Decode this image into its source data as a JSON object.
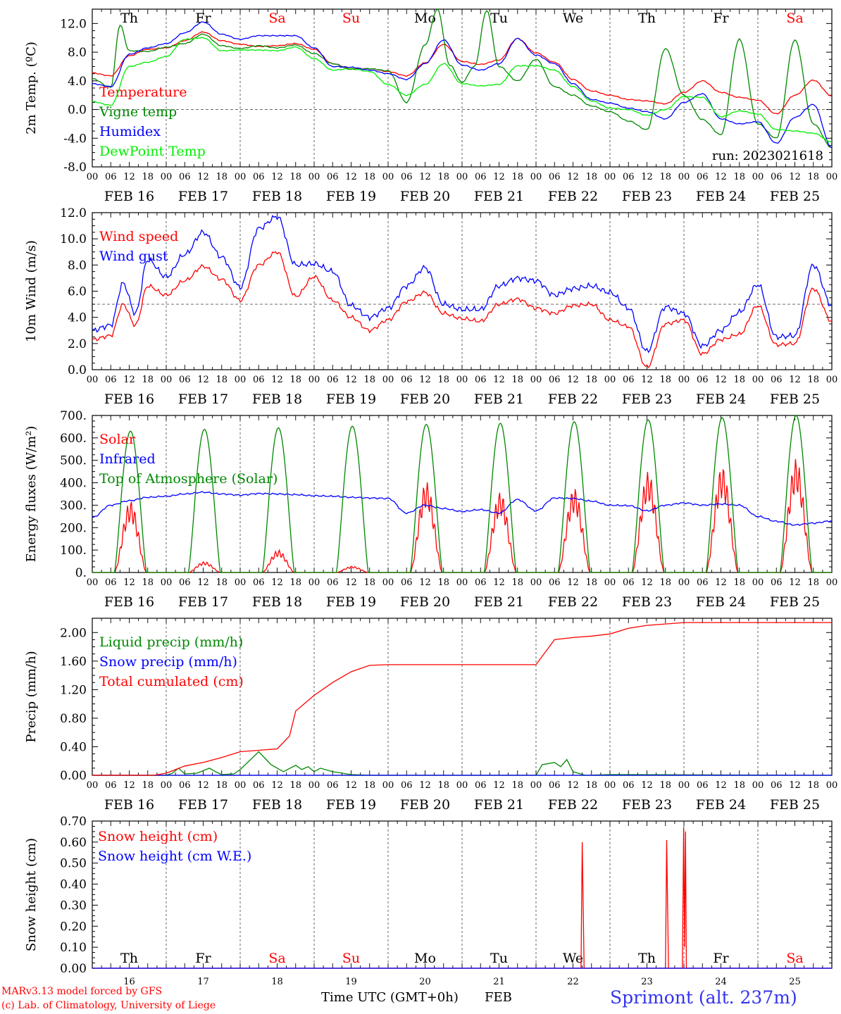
{
  "days": [
    "16",
    "17",
    "18",
    "19",
    "20",
    "21",
    "22",
    "23",
    "24",
    "25"
  ],
  "day_names": [
    "Th",
    "Fr",
    "Sa",
    "Su",
    "Mo",
    "Tu",
    "We",
    "Th",
    "Fr",
    "Sa"
  ],
  "weekend_flags": [
    false,
    false,
    true,
    true,
    false,
    false,
    false,
    false,
    false,
    true
  ],
  "date_labels": [
    "FEB 16",
    "FEB 17",
    "FEB 18",
    "FEB 19",
    "FEB 20",
    "FEB 21",
    "FEB 22",
    "FEB 23",
    "FEB 24",
    "FEB 25"
  ],
  "hour_labels": [
    "00",
    "06",
    "12",
    "18"
  ],
  "final_hour_label": "00",
  "run_label": "run: 2023021618",
  "x_axis_label": "Time UTC (GMT+0h)",
  "x_month_label": "FEB",
  "station": "Sprimont (alt. 237m)",
  "credit_1": "MARv3.13 model forced by GFS",
  "credit_2": "(c) Lab. of Climatology, University of Liege",
  "colors": {
    "red": "#ff0000",
    "green": "#008800",
    "blue": "#0000ff",
    "light_green": "#00ee00",
    "grid": "#555555"
  },
  "chart_data": [
    {
      "type": "line",
      "ylabel": "2m Temp. (ºC)",
      "ylim": [
        -8,
        14
      ],
      "yticks": [
        "-8.0",
        "-4.0",
        "0.0",
        "4.0",
        "8.0",
        "12.0"
      ],
      "ytick_values": [
        -8,
        -4,
        0,
        4,
        8,
        12
      ],
      "ref_line": 0,
      "x_unit": "hours since FEB 16 00 UTC",
      "series": [
        {
          "name": "Temperature",
          "color": "red",
          "x": [
            0,
            6,
            12,
            18,
            24,
            30,
            36,
            42,
            48,
            54,
            60,
            66,
            72,
            78,
            84,
            90,
            96,
            102,
            108,
            114,
            120,
            126,
            132,
            138,
            144,
            150,
            156,
            162,
            168,
            174,
            180,
            186,
            192,
            198,
            204,
            210,
            216,
            222,
            228,
            234,
            240
          ],
          "y": [
            5.1,
            4.7,
            7.5,
            8.4,
            8.6,
            9.6,
            10.8,
            9.6,
            9.1,
            8.8,
            8.9,
            9.2,
            8.4,
            6.4,
            5.7,
            5.7,
            5.3,
            4.7,
            6.5,
            9.1,
            6.7,
            6.3,
            6.9,
            9.9,
            7.9,
            6.6,
            4.2,
            2.6,
            2.0,
            1.4,
            1.2,
            0.8,
            2.4,
            4.0,
            2.4,
            1.7,
            1.3,
            -0.6,
            2.0,
            4.1,
            1.9
          ]
        },
        {
          "name": "Vigne temp",
          "color": "green",
          "x": [
            0,
            6,
            9,
            12,
            18,
            24,
            30,
            36,
            42,
            48,
            54,
            60,
            66,
            72,
            78,
            84,
            90,
            96,
            102,
            108,
            112,
            116,
            120,
            124,
            128,
            132,
            138,
            144,
            150,
            156,
            162,
            168,
            174,
            180,
            186,
            192,
            198,
            204,
            210,
            216,
            222,
            228,
            234,
            240
          ],
          "y": [
            4.3,
            3.1,
            11.8,
            8.2,
            8.1,
            8.7,
            9.2,
            10.5,
            8.9,
            8.5,
            8.9,
            8.6,
            9.0,
            7.8,
            6.4,
            5.6,
            5.7,
            5.4,
            1.0,
            9.0,
            14.0,
            6.2,
            3.8,
            6.0,
            13.8,
            6.0,
            4.0,
            7.0,
            3.2,
            2.0,
            0.5,
            -0.3,
            -1.6,
            -2.8,
            8.5,
            2.0,
            -1.4,
            -3.5,
            9.8,
            -2.0,
            -4.0,
            9.7,
            -2.0,
            -5.3
          ]
        },
        {
          "name": "Humidex",
          "color": "blue",
          "x": [
            0,
            6,
            12,
            18,
            24,
            30,
            36,
            42,
            48,
            54,
            60,
            66,
            72,
            78,
            84,
            90,
            96,
            102,
            108,
            114,
            120,
            126,
            132,
            138,
            144,
            150,
            156,
            162,
            168,
            174,
            180,
            186,
            192,
            198,
            204,
            210,
            216,
            222,
            228,
            234,
            240
          ],
          "y": [
            3.6,
            3.2,
            7.7,
            8.6,
            9.2,
            10.7,
            12.2,
            10.5,
            9.8,
            10.3,
            10.3,
            10.3,
            8.6,
            6.0,
            5.9,
            5.5,
            5.0,
            4.2,
            6.4,
            9.7,
            6.2,
            5.5,
            6.4,
            9.9,
            7.6,
            6.4,
            3.6,
            1.4,
            0.9,
            0.2,
            -0.3,
            -1.3,
            1.0,
            2.2,
            -1.3,
            -2.0,
            -1.7,
            -4.7,
            -1.1,
            0.7,
            -5.3
          ]
        },
        {
          "name": "DewPoint Temp",
          "color": "light_green",
          "x": [
            0,
            6,
            12,
            18,
            24,
            30,
            36,
            42,
            48,
            54,
            60,
            66,
            72,
            78,
            84,
            90,
            96,
            102,
            108,
            114,
            120,
            126,
            132,
            138,
            144,
            150,
            156,
            162,
            168,
            174,
            180,
            186,
            192,
            198,
            204,
            210,
            216,
            222,
            228,
            234,
            240
          ],
          "y": [
            1.1,
            0.6,
            6.0,
            6.6,
            7.4,
            9.8,
            10.0,
            8.2,
            8.3,
            8.3,
            8.2,
            8.7,
            7.1,
            5.5,
            5.7,
            5.3,
            3.5,
            2.0,
            3.5,
            6.4,
            3.6,
            3.3,
            3.5,
            6.1,
            6.1,
            5.5,
            3.2,
            1.2,
            0.2,
            0.0,
            -0.8,
            0.0,
            1.8,
            1.7,
            -1.0,
            -0.2,
            -0.6,
            -2.8,
            -3.0,
            -3.3,
            -4.5
          ]
        }
      ],
      "legend": [
        "Temperature",
        "Vigne temp",
        "Humidex",
        "DewPoint Temp"
      ]
    },
    {
      "type": "line",
      "ylabel": "10m Wind (m/s)",
      "ylim": [
        0,
        12
      ],
      "yticks": [
        "0.0",
        "2.0",
        "4.0",
        "6.0",
        "8.0",
        "10.0",
        "12.0"
      ],
      "ytick_values": [
        0,
        2,
        4,
        6,
        8,
        10,
        12
      ],
      "ref_line": 5,
      "x_unit": "hours since FEB 16 00 UTC",
      "series": [
        {
          "name": "Wind speed",
          "color": "red",
          "x": [
            0,
            6,
            10,
            14,
            18,
            24,
            30,
            36,
            42,
            48,
            54,
            60,
            66,
            72,
            78,
            84,
            90,
            96,
            102,
            108,
            114,
            120,
            126,
            132,
            138,
            144,
            150,
            156,
            162,
            168,
            174,
            180,
            186,
            192,
            198,
            204,
            210,
            216,
            222,
            228,
            234,
            240
          ],
          "y": [
            2.3,
            2.6,
            5.0,
            3.4,
            6.4,
            5.7,
            6.8,
            7.9,
            6.9,
            5.3,
            8.0,
            9.0,
            5.6,
            7.1,
            5.3,
            4.0,
            3.0,
            3.8,
            5.2,
            5.9,
            4.3,
            3.9,
            3.7,
            5.0,
            5.4,
            4.7,
            4.3,
            4.9,
            5.0,
            3.8,
            3.3,
            0.2,
            3.5,
            3.8,
            1.2,
            2.3,
            2.7,
            4.9,
            1.9,
            2.0,
            6.2,
            3.7
          ]
        },
        {
          "name": "Wind gust",
          "color": "blue",
          "x": [
            0,
            6,
            10,
            14,
            18,
            24,
            30,
            36,
            42,
            48,
            54,
            60,
            66,
            72,
            78,
            84,
            90,
            96,
            102,
            108,
            114,
            120,
            126,
            132,
            138,
            144,
            150,
            156,
            162,
            168,
            174,
            180,
            186,
            192,
            198,
            204,
            210,
            216,
            222,
            228,
            234,
            240
          ],
          "y": [
            3.0,
            3.4,
            6.6,
            4.3,
            8.4,
            7.1,
            8.8,
            10.5,
            8.6,
            6.3,
            10.8,
            11.7,
            8.0,
            8.1,
            7.5,
            4.9,
            4.0,
            4.7,
            6.4,
            7.8,
            5.0,
            4.6,
            4.6,
            6.4,
            7.0,
            6.8,
            5.7,
            6.2,
            6.4,
            5.9,
            4.7,
            1.4,
            4.8,
            4.3,
            1.8,
            3.0,
            4.4,
            6.5,
            2.5,
            2.6,
            8.0,
            4.9
          ]
        }
      ],
      "legend": [
        "Wind speed",
        "Wind gust"
      ]
    },
    {
      "type": "line",
      "ylabel": "Energy fluxes (W/m²)",
      "ylim": [
        0,
        700
      ],
      "yticks": [
        "0.",
        "100.",
        "200.",
        "300.",
        "400.",
        "500.",
        "600.",
        "700."
      ],
      "ytick_values": [
        0,
        100,
        200,
        300,
        400,
        500,
        600,
        700
      ],
      "x_unit": "hours since FEB 16 00 UTC",
      "series": [
        {
          "name": "Solar",
          "color": "red",
          "peaks": [
            320,
            48,
            100,
            28,
            405,
            360,
            378,
            450,
            475,
            508
          ]
        },
        {
          "name": "Infrared",
          "color": "blue",
          "x": [
            0,
            6,
            12,
            18,
            24,
            30,
            36,
            42,
            48,
            54,
            60,
            66,
            72,
            78,
            84,
            90,
            96,
            102,
            108,
            114,
            120,
            126,
            132,
            138,
            144,
            150,
            156,
            162,
            168,
            174,
            180,
            186,
            192,
            198,
            204,
            210,
            216,
            222,
            228,
            234,
            240
          ],
          "y": [
            245,
            300,
            320,
            335,
            340,
            350,
            358,
            350,
            345,
            352,
            350,
            347,
            342,
            340,
            335,
            332,
            330,
            265,
            300,
            285,
            272,
            280,
            265,
            325,
            275,
            332,
            330,
            318,
            300,
            298,
            275,
            300,
            310,
            300,
            305,
            300,
            250,
            228,
            212,
            220,
            230
          ]
        },
        {
          "name": "Top of Atmosphere (Solar)",
          "color": "green",
          "peaks": [
            630,
            638,
            645,
            652,
            660,
            665,
            672,
            680,
            690,
            700
          ]
        }
      ],
      "legend": [
        "Solar",
        "Infrared",
        "Top of Atmosphere (Solar)"
      ]
    },
    {
      "type": "line",
      "ylabel": "Precip (mm/h)",
      "ylim": [
        0,
        2.2
      ],
      "yticks": [
        "0.00",
        "0.40",
        "0.80",
        "1.20",
        "1.60",
        "2.00"
      ],
      "ytick_values": [
        0,
        0.4,
        0.8,
        1.2,
        1.6,
        2.0
      ],
      "x_unit": "hours since FEB 16 00 UTC",
      "series": [
        {
          "name": "Liquid precip (mm/h)",
          "color": "green",
          "x": [
            0,
            24,
            26,
            28,
            30,
            34,
            38,
            40,
            42,
            46,
            48,
            54,
            58,
            62,
            66,
            68,
            70,
            72,
            74,
            78,
            84,
            90,
            96,
            144,
            146,
            150,
            152,
            154,
            156,
            160,
            168,
            240
          ],
          "y": [
            0,
            0,
            0.03,
            0.1,
            0.02,
            0.03,
            0.1,
            0.05,
            0.01,
            0.02,
            0.08,
            0.33,
            0.15,
            0.05,
            0.14,
            0.08,
            0.12,
            0.05,
            0.1,
            0.05,
            0.01,
            0,
            0,
            0,
            0.15,
            0.18,
            0.12,
            0.22,
            0.05,
            0,
            0.01,
            0
          ]
        },
        {
          "name": "Snow precip (mm/h)",
          "color": "blue",
          "x": [
            0,
            240
          ],
          "y": [
            0,
            0
          ]
        },
        {
          "name": "Total cumulated (cm)",
          "color": "red",
          "x": [
            0,
            20,
            24,
            30,
            36,
            42,
            48,
            54,
            60,
            64,
            66,
            72,
            78,
            84,
            90,
            96,
            144,
            150,
            156,
            162,
            168,
            174,
            180,
            186,
            192,
            198,
            204,
            216,
            228,
            240
          ],
          "y": [
            0,
            0,
            0.03,
            0.13,
            0.18,
            0.25,
            0.33,
            0.35,
            0.37,
            0.55,
            0.9,
            1.12,
            1.3,
            1.45,
            1.54,
            1.55,
            1.55,
            1.9,
            1.93,
            1.95,
            1.98,
            2.06,
            2.1,
            2.12,
            2.14,
            2.14,
            2.14,
            2.14,
            2.14,
            2.14
          ]
        }
      ],
      "legend": [
        "Liquid precip (mm/h)",
        "Snow precip (mm/h)",
        "Total cumulated (cm)"
      ]
    },
    {
      "type": "line",
      "ylabel": "Snow height (cm)",
      "ylim": [
        0,
        0.7
      ],
      "yticks": [
        "0.00",
        "0.10",
        "0.20",
        "0.30",
        "0.40",
        "0.50",
        "0.60",
        "0.70"
      ],
      "ytick_values": [
        0,
        0.1,
        0.2,
        0.3,
        0.4,
        0.5,
        0.6,
        0.7
      ],
      "x_unit": "hours since FEB 16 00 UTC",
      "series": [
        {
          "name": "Snow height (cm)",
          "color": "red",
          "x": [
            0,
            158.6,
            159,
            159.6,
            186,
            186.4,
            187,
            191.5,
            191.9,
            192.2,
            192.5,
            192.8,
            240
          ],
          "y": [
            0,
            0,
            0.6,
            0,
            0,
            0.61,
            0,
            0,
            0.67,
            0.1,
            0.65,
            0,
            0
          ]
        },
        {
          "name": "Snow height (cm W.E.)",
          "color": "blue",
          "x": [
            0,
            240
          ],
          "y": [
            0,
            0
          ]
        }
      ],
      "legend": [
        "Snow height (cm)",
        "Snow height (cm W.E.)"
      ]
    }
  ]
}
